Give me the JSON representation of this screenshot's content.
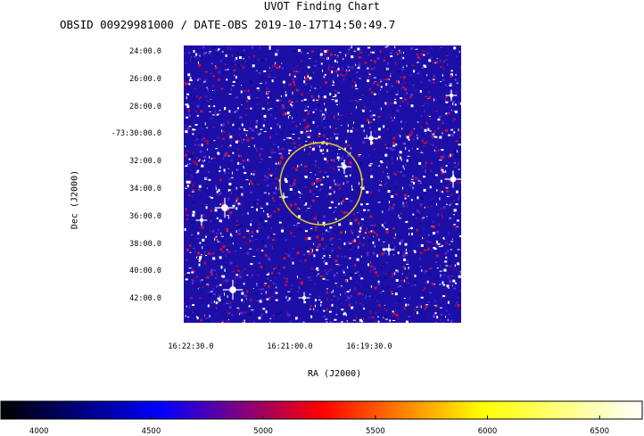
{
  "chart_data": {
    "type": "heatmap",
    "title": "UVOT Finding Chart",
    "subtitle": "OBSID 00929981000 / DATE-OBS 2019-10-17T14:50:49.7",
    "xlabel": "RA (J2000)",
    "ylabel": "Dec (J2000)",
    "x_ticks": [
      "16:22:30.0",
      "16:21:00.0",
      "16:19:30.0"
    ],
    "y_ticks": [
      "24:00.0",
      "26:00.0",
      "28:00.0",
      "-73:30:00.0",
      "32:00.0",
      "34:00.0",
      "36:00.0",
      "38:00.0",
      "40:00.0",
      "42:00.0"
    ],
    "colorbar": {
      "ticks": [
        4000,
        4500,
        5000,
        5500,
        6000,
        6500
      ],
      "range": [
        3830,
        6690
      ],
      "colors": [
        "#000000",
        "#0000ff",
        "#ff0000",
        "#ffff00",
        "#ffffff"
      ]
    },
    "region": {
      "shape": "circle",
      "color": "#e8d21a"
    },
    "image_colors": {
      "background": "#1c0fa8",
      "speckle": [
        "#ffffff",
        "#d01030",
        "#5a2cd8",
        "#0d0a8a"
      ]
    }
  }
}
